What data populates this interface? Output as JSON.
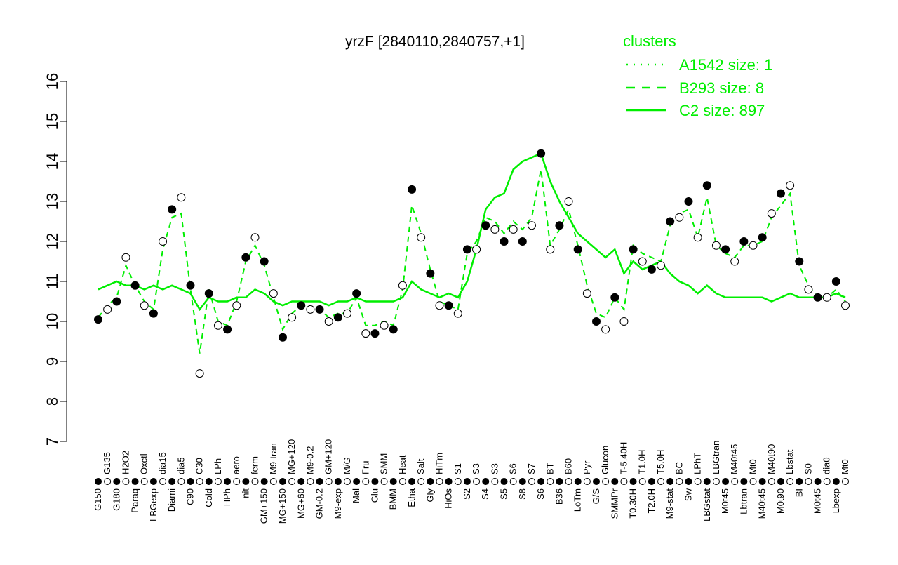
{
  "chart_data": {
    "type": "line",
    "title": "yrzF [2840110,2840757,+1]",
    "xlabel": "",
    "ylabel": "",
    "ylim": [
      7,
      16
    ],
    "yticks": [
      7,
      8,
      9,
      10,
      11,
      12,
      13,
      14,
      15,
      16
    ],
    "grid": false,
    "legend": {
      "title": "clusters",
      "placement": "top-right",
      "color": "#00ee00",
      "entries": [
        {
          "label": "A1542 size: 1",
          "style": "dotted"
        },
        {
          "label": "B293 size: 8",
          "style": "dashed"
        },
        {
          "label": "C2 size: 897",
          "style": "solid"
        }
      ]
    },
    "categories": [
      "G150",
      "G135",
      "G180",
      "H2O2",
      "Paraq",
      "Oxctl",
      "LBGexp",
      "dia15",
      "Diami",
      "dia5",
      "C90",
      "C30",
      "Cold",
      "LPh",
      "HPh",
      "aero",
      "nit",
      "ferm",
      "GM+150",
      "M9-tran",
      "MG+150",
      "MG+120",
      "MG+60",
      "M9-0.2",
      "GM-0.2",
      "GM+120",
      "M9-exp",
      "M/G",
      "Mal",
      "Fru",
      "Glu",
      "SMM",
      "BMM",
      "Heat",
      "Etha",
      "Salt",
      "Gly",
      "HiTm",
      "HiOs",
      "S1",
      "S2",
      "S3",
      "S4",
      "S3",
      "S5",
      "S6",
      "S8",
      "S7",
      "S6",
      "BT",
      "B36",
      "B60",
      "LoTm",
      "Pyr",
      "G/S",
      "Glucon",
      "SMMPr",
      "T-5.40H",
      "T0.30H",
      "T1.0H",
      "T2.0H",
      "T5.0H",
      "M9-stat",
      "BC",
      "Sw",
      "LPhT",
      "LBGstat",
      "LBGtran",
      "M0t45",
      "M40t45",
      "Lbtran",
      "Mt0",
      "M40t45",
      "M40t90",
      "M0t90",
      "Lbstat",
      "BI",
      "S0",
      "M0t45",
      "dia0",
      "Lbexp",
      "Mt0"
    ],
    "series": [
      {
        "name": "",
        "role": "expression points",
        "values": [
          10.05,
          10.3,
          10.5,
          11.6,
          10.9,
          10.4,
          10.2,
          12.0,
          12.8,
          13.1,
          10.9,
          8.7,
          10.7,
          9.9,
          9.8,
          10.4,
          11.6,
          12.1,
          11.5,
          10.7,
          9.6,
          10.1,
          10.4,
          10.3,
          10.3,
          10.0,
          10.1,
          10.2,
          10.7,
          9.7,
          9.7,
          9.9,
          9.8,
          10.9,
          13.3,
          12.1,
          11.2,
          10.4,
          10.4,
          10.2,
          11.8,
          11.8,
          12.4,
          12.3,
          12.0,
          12.3,
          12.0,
          12.4,
          14.2,
          11.8,
          12.4,
          13.0,
          11.8,
          10.7,
          10.0,
          9.8,
          10.6,
          10.0,
          11.8,
          11.5,
          11.3,
          11.4,
          12.5,
          12.6,
          13.0,
          12.1,
          13.4,
          11.9,
          11.8,
          11.5,
          12.0,
          11.9,
          12.1,
          12.7,
          13.2,
          13.4,
          11.5,
          10.8,
          10.6,
          10.6,
          11.0,
          10.4
        ]
      },
      {
        "name": "B293 size: 8",
        "values": [
          10.1,
          10.4,
          10.6,
          11.4,
          10.9,
          10.5,
          10.3,
          11.8,
          12.6,
          12.7,
          10.8,
          9.2,
          10.8,
          10.0,
          9.9,
          10.5,
          11.5,
          11.9,
          11.4,
          10.6,
          9.8,
          10.2,
          10.4,
          10.3,
          10.3,
          10.1,
          10.2,
          10.2,
          10.6,
          9.9,
          9.9,
          10.0,
          9.9,
          10.8,
          12.9,
          12.2,
          11.3,
          10.5,
          10.4,
          10.3,
          11.7,
          12.0,
          12.6,
          12.5,
          12.2,
          12.5,
          12.3,
          12.6,
          13.8,
          11.9,
          12.3,
          12.8,
          11.9,
          10.9,
          10.2,
          10.1,
          10.6,
          10.3,
          11.9,
          11.7,
          11.6,
          11.5,
          12.4,
          12.7,
          12.8,
          12.1,
          13.1,
          11.9,
          11.7,
          11.6,
          11.9,
          11.9,
          12.0,
          12.6,
          12.9,
          13.2,
          11.4,
          10.9,
          10.6,
          10.6,
          10.8,
          10.5
        ]
      },
      {
        "name": "C2 size: 897",
        "values": [
          10.8,
          10.9,
          11.0,
          10.9,
          10.9,
          10.8,
          10.9,
          10.8,
          10.9,
          10.8,
          10.7,
          10.3,
          10.6,
          10.5,
          10.5,
          10.6,
          10.6,
          10.8,
          10.7,
          10.5,
          10.4,
          10.5,
          10.5,
          10.5,
          10.5,
          10.4,
          10.5,
          10.5,
          10.6,
          10.5,
          10.5,
          10.5,
          10.5,
          10.6,
          11.0,
          10.8,
          10.7,
          10.6,
          10.7,
          10.6,
          11.0,
          11.8,
          12.8,
          13.1,
          13.2,
          13.8,
          14.0,
          14.1,
          14.2,
          13.5,
          13.0,
          12.6,
          12.2,
          12.0,
          11.8,
          11.6,
          11.8,
          11.2,
          11.5,
          11.3,
          11.4,
          11.5,
          11.2,
          11.0,
          10.9,
          10.7,
          10.9,
          10.7,
          10.6,
          10.6,
          10.6,
          10.6,
          10.6,
          10.5,
          10.6,
          10.7,
          10.6,
          10.6,
          10.6,
          10.6,
          10.7,
          10.6
        ]
      }
    ],
    "colors": {
      "points_fill_alt": [
        "#000000",
        "#ffffff"
      ],
      "lines": "#00ee00"
    }
  }
}
